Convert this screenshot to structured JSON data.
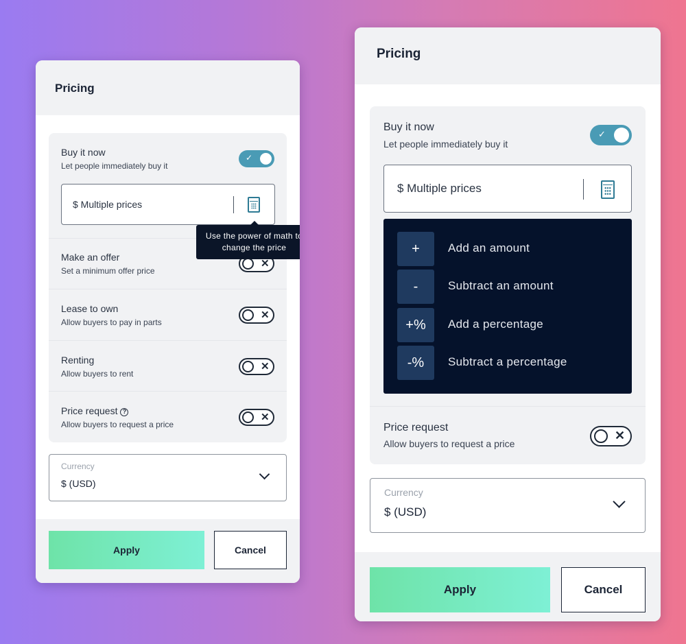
{
  "left": {
    "title": "Pricing",
    "buy_now": {
      "title": "Buy it now",
      "subtitle": "Let people immediately buy it",
      "enabled": true,
      "price_value": "$ Multiple prices"
    },
    "tooltip": "Use the power of math to change the price",
    "rows": [
      {
        "title": "Make an offer",
        "subtitle": "Set a minimum offer price",
        "enabled": false
      },
      {
        "title": "Lease to own",
        "subtitle": "Allow buyers to pay in parts",
        "enabled": false
      },
      {
        "title": "Renting",
        "subtitle": "Allow buyers to rent",
        "enabled": false
      },
      {
        "title": "Price request",
        "subtitle": "Allow buyers to request a price",
        "enabled": false
      }
    ],
    "currency": {
      "label": "Currency",
      "value": "$ (USD)"
    },
    "apply": "Apply",
    "cancel": "Cancel"
  },
  "right": {
    "title": "Pricing",
    "buy_now": {
      "title": "Buy it now",
      "subtitle": "Let people immediately buy it",
      "enabled": true,
      "price_value": "$ Multiple prices"
    },
    "menu": [
      {
        "key": "+",
        "label": "Add an amount"
      },
      {
        "key": "-",
        "label": "Subtract an amount"
      },
      {
        "key": "+%",
        "label": "Add a percentage"
      },
      {
        "key": "-%",
        "label": "Subtract a percentage"
      }
    ],
    "price_request": {
      "title": "Price request",
      "subtitle": "Allow buyers to request a price",
      "enabled": false
    },
    "currency": {
      "label": "Currency",
      "value": "$ (USD)"
    },
    "apply": "Apply",
    "cancel": "Cancel"
  },
  "icons": {
    "toggle_on": "check-icon",
    "toggle_off": "x-icon",
    "calculator": "calculator-icon",
    "help": "question-circle-icon",
    "chevron": "chevron-down-icon"
  },
  "colors": {
    "toggle_on": "#4a9bb5",
    "menu_bg": "#05122b",
    "apply_gradient_start": "#6ee3a8"
  }
}
